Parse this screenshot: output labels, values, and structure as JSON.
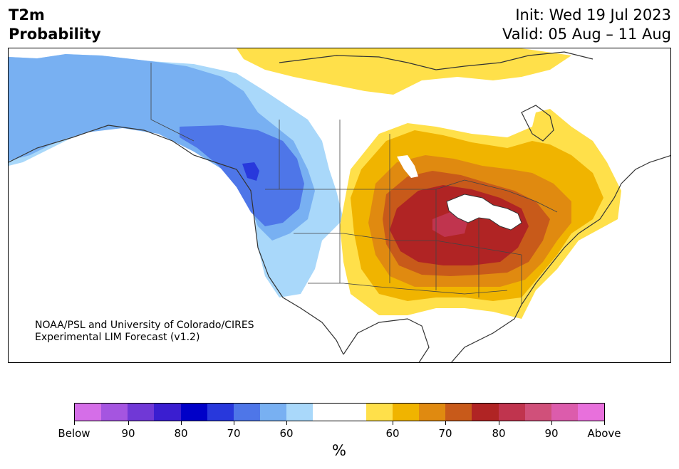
{
  "header": {
    "variable": "T2m",
    "product": "Probability",
    "init": "Init: Wed 19 Jul 2023",
    "valid": "Valid: 05 Aug – 11 Aug"
  },
  "credit": {
    "line1": "NOAA/PSL and University of Colorado/CIRES",
    "line2": "Experimental LIM Forecast (v1.2)"
  },
  "colorbar": {
    "unit": "%",
    "colors": [
      "#d56ee8",
      "#a555e0",
      "#7038d6",
      "#3a1ed0",
      "#0000c8",
      "#2838dc",
      "#4e76e8",
      "#78b0f2",
      "#a9d8fa",
      "#ffffff",
      "#ffffff",
      "#ffe04a",
      "#f0b400",
      "#e08a10",
      "#c85a1a",
      "#b02424",
      "#c0344e",
      "#d0507a",
      "#dc5cac",
      "#e870dc"
    ],
    "ticks": [
      "Below",
      "90",
      "80",
      "70",
      "60",
      "60",
      "70",
      "80",
      "90",
      "Above"
    ]
  },
  "map": {
    "region": "North America",
    "colors": {
      "below_50": "#78b0f2",
      "below_60": "#a9d8fa",
      "below_70": "#4e76e8",
      "below_80": "#2838dc",
      "above_50": "#ffe04a",
      "above_60": "#f0b400",
      "above_65": "#e08a10",
      "above_70": "#c85a1a",
      "above_80": "#b02424",
      "above_85": "#c0344e"
    }
  }
}
